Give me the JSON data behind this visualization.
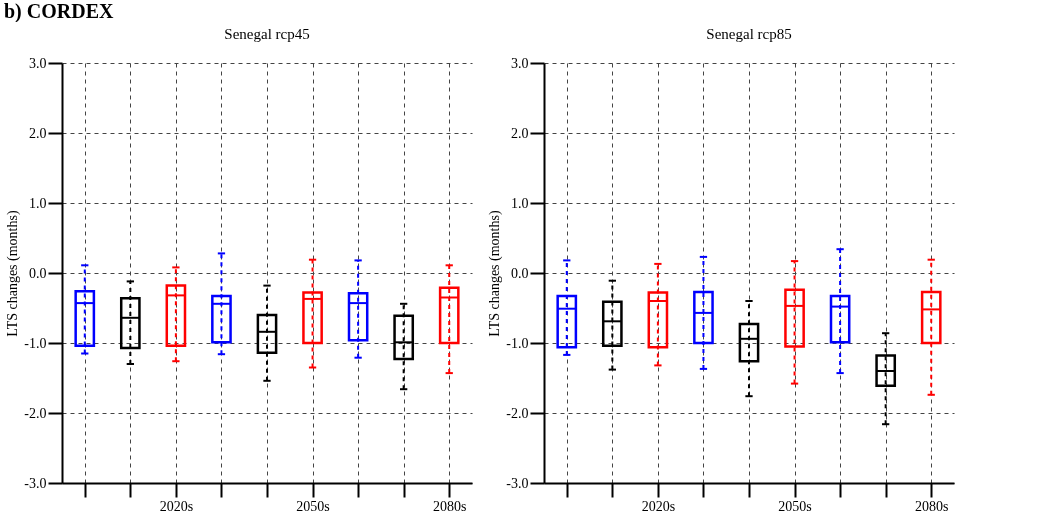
{
  "chart_data": [
    {
      "type": "box",
      "title": "Senegal rcp45",
      "ylabel": "LTS changes (months)",
      "annotations": [
        "b)   CORDEX"
      ],
      "categories": [
        null,
        null,
        "2020s",
        null,
        null,
        "2050s",
        null,
        null,
        "2080s"
      ],
      "colors": [
        "#0000ff",
        "#000000",
        "#ff0000",
        "#0000ff",
        "#000000",
        "#ff0000",
        "#0000ff",
        "#000000",
        "#ff0000"
      ],
      "boxes": [
        {
          "low": -1.15,
          "q1": -1.04,
          "median": -0.43,
          "q3": -0.26,
          "high": 0.11
        },
        {
          "low": -1.3,
          "q1": -1.07,
          "median": -0.64,
          "q3": -0.36,
          "high": -0.12
        },
        {
          "low": -1.26,
          "q1": -1.04,
          "median": -0.32,
          "q3": -0.18,
          "high": 0.08
        },
        {
          "low": -1.16,
          "q1": -0.99,
          "median": -0.44,
          "q3": -0.33,
          "high": 0.28
        },
        {
          "low": -1.54,
          "q1": -1.14,
          "median": -0.84,
          "q3": -0.6,
          "high": -0.18
        },
        {
          "low": -1.35,
          "q1": -1.0,
          "median": -0.37,
          "q3": -0.28,
          "high": 0.19
        },
        {
          "low": -1.21,
          "q1": -0.96,
          "median": -0.43,
          "q3": -0.29,
          "high": 0.18
        },
        {
          "low": -1.66,
          "q1": -1.23,
          "median": -0.99,
          "q3": -0.61,
          "high": -0.44
        },
        {
          "low": -1.43,
          "q1": -1.0,
          "median": -0.35,
          "q3": -0.21,
          "high": 0.11
        }
      ],
      "ylim": [
        -3,
        3
      ],
      "yticks": [
        {
          "value": -3,
          "label": "-3.0"
        },
        {
          "value": -2,
          "label": "-2.0"
        },
        {
          "value": -1,
          "label": "-1.0"
        },
        {
          "value": 0,
          "label": "0.0"
        },
        {
          "value": 1,
          "label": "1.0"
        },
        {
          "value": 2,
          "label": "2.0"
        },
        {
          "value": 3,
          "label": "3.0"
        }
      ],
      "grid": true,
      "line_style": "dashed"
    },
    {
      "type": "box",
      "title": "Senegal rcp85",
      "ylabel": "LTS changes (months)",
      "categories": [
        null,
        null,
        "2020s",
        null,
        null,
        "2050s",
        null,
        null,
        "2080s"
      ],
      "colors": [
        "#0000ff",
        "#000000",
        "#ff0000",
        "#0000ff",
        "#000000",
        "#ff0000",
        "#0000ff",
        "#000000",
        "#ff0000"
      ],
      "boxes": [
        {
          "low": -1.17,
          "q1": -1.06,
          "median": -0.51,
          "q3": -0.33,
          "high": 0.18
        },
        {
          "low": -1.38,
          "q1": -1.04,
          "median": -0.69,
          "q3": -0.41,
          "high": -0.11
        },
        {
          "low": -1.32,
          "q1": -1.06,
          "median": -0.4,
          "q3": -0.28,
          "high": 0.13
        },
        {
          "low": -1.37,
          "q1": -1.0,
          "median": -0.57,
          "q3": -0.27,
          "high": 0.23
        },
        {
          "low": -1.76,
          "q1": -1.26,
          "median": -0.94,
          "q3": -0.73,
          "high": -0.4
        },
        {
          "low": -1.58,
          "q1": -1.05,
          "median": -0.47,
          "q3": -0.24,
          "high": 0.17
        },
        {
          "low": -1.43,
          "q1": -0.99,
          "median": -0.48,
          "q3": -0.33,
          "high": 0.34
        },
        {
          "low": -2.16,
          "q1": -1.61,
          "median": -1.4,
          "q3": -1.18,
          "high": -0.86
        },
        {
          "low": -1.74,
          "q1": -1.0,
          "median": -0.52,
          "q3": -0.27,
          "high": 0.19
        }
      ],
      "ylim": [
        -3,
        3
      ],
      "yticks": [
        {
          "value": -3,
          "label": "-3.0"
        },
        {
          "value": -2,
          "label": "-2.0"
        },
        {
          "value": -1,
          "label": "-1.0"
        },
        {
          "value": 0,
          "label": "0.0"
        },
        {
          "value": 1,
          "label": "1.0"
        },
        {
          "value": 2,
          "label": "2.0"
        },
        {
          "value": 3,
          "label": "3.0"
        }
      ],
      "grid": true,
      "line_style": "dashed"
    }
  ]
}
